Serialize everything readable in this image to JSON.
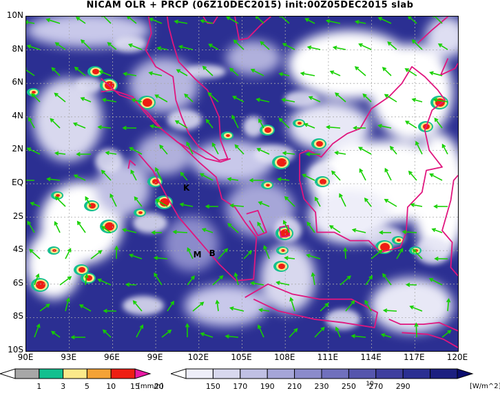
{
  "title": "NICAM OLR + PRCP (06Z10DEC2015) init:00Z05DEC2015 slab",
  "latitude_labels": [
    "10N",
    "8N",
    "6N",
    "4N",
    "2N",
    "EQ",
    "2S",
    "4S",
    "6S",
    "8S",
    "10S"
  ],
  "longitude_labels": [
    "90E",
    "93E",
    "96E",
    "99E",
    "102E",
    "105E",
    "108E",
    "111E",
    "114E",
    "117E",
    "120E"
  ],
  "markers": [
    {
      "label": "K",
      "lon": 101.1,
      "lat": -0.3
    },
    {
      "label": "M",
      "lon": 101.8,
      "lat": -4.3
    },
    {
      "label": "B",
      "lon": 102.9,
      "lat": -4.2
    }
  ],
  "precip_colorbar": {
    "labels": [
      "1",
      "3",
      "5",
      "10",
      "15",
      "20"
    ],
    "unit": "[mm/h]",
    "colors": [
      "#ffffff",
      "#a7a7a7",
      "#12c08f",
      "#fbe98a",
      "#f4a236",
      "#ee1e13",
      "#e81aa3"
    ]
  },
  "olr_colorbar": {
    "labels": [
      "150",
      "170",
      "190",
      "210",
      "230",
      "250",
      "270",
      "290"
    ],
    "unit": "[W/m^2]",
    "vector_scale_label": "10",
    "colors": [
      "#ffffff",
      "#eeeef9",
      "#d8d8ee",
      "#c0c0e4",
      "#a6a6d8",
      "#8b8bcb",
      "#7070bd",
      "#5656ad",
      "#3f3f9e",
      "#2b2f92",
      "#1c1f80",
      "#0a0d6e"
    ]
  },
  "colors": {
    "coastline": "#e0167e",
    "wind_vector": "#16d000",
    "grid": "#aaaaaa"
  }
}
